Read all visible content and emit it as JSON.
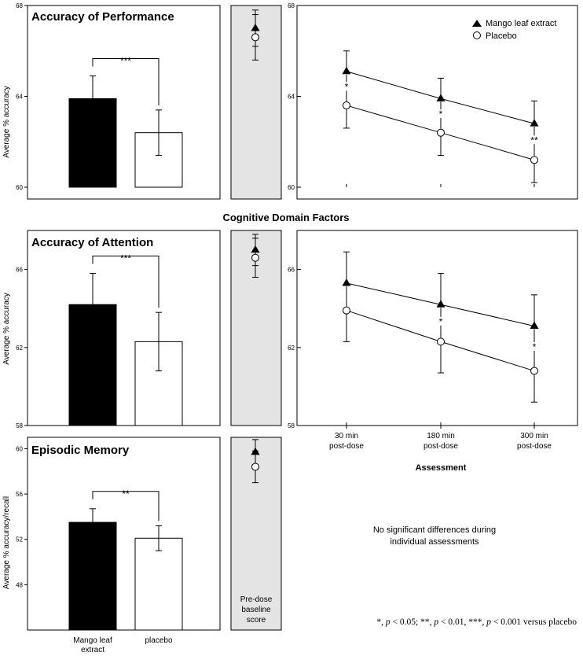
{
  "colors": {
    "baseline_bg": "#e4e4e4",
    "mango": "#000000",
    "placebo": "#ffffff",
    "axis": "#000000"
  },
  "domain_title": "Cognitive Domain Factors",
  "baseline_label": [
    "Pre-dose",
    "baseline",
    "score"
  ],
  "footnote": {
    "p1": "*, ",
    "p1_italic": "p",
    "p1_rest": " < 0.05; **, ",
    "p2_italic": "p",
    "p2_rest": " < 0.01, ***, ",
    "p3_italic": "p",
    "p3_rest": " < 0.001 versus placebo"
  },
  "note_no_sig": [
    "No significant differences during",
    "individual assessments"
  ],
  "legend": {
    "mango": "Mango leaf extract",
    "placebo": "Placebo"
  },
  "chart_data": [
    {
      "type": "bar",
      "title": "Accuracy of Performance",
      "ylabel": "Average % accuracy",
      "ylim": [
        60,
        68
      ],
      "yticks": [
        60,
        64,
        68
      ],
      "categories": [
        "Mango leaf extract",
        "placebo"
      ],
      "values": [
        63.9,
        62.4
      ],
      "errors": [
        1.0,
        1.0
      ],
      "significance": "***",
      "baseline": {
        "mango": 67.0,
        "mango_err": 0.8,
        "placebo": 66.6,
        "placebo_err": 1.0
      }
    },
    {
      "type": "line",
      "ylim": [
        60,
        68
      ],
      "yticks": [
        60,
        64,
        68
      ],
      "categories": [
        "30 min post-dose",
        "180 min post-dose",
        "300 min post-dose"
      ],
      "series": [
        {
          "name": "Mango leaf extract",
          "values": [
            65.1,
            63.9,
            62.8
          ],
          "errors": [
            0.9,
            0.9,
            1.0
          ]
        },
        {
          "name": "Placebo",
          "values": [
            63.6,
            62.4,
            61.2
          ],
          "errors": [
            1.0,
            1.0,
            1.0
          ]
        }
      ],
      "annotations": [
        "*",
        "*",
        "**"
      ]
    },
    {
      "type": "bar",
      "title": "Accuracy of Attention",
      "ylabel": "Average % accuracy",
      "ylim": [
        58,
        68
      ],
      "yticks": [
        58,
        62,
        66
      ],
      "categories": [
        "Mango leaf extract",
        "placebo"
      ],
      "values": [
        64.2,
        62.3
      ],
      "errors": [
        1.6,
        1.5
      ],
      "significance": "***",
      "baseline": {
        "mango": 67.0,
        "mango_err": 0.8,
        "placebo": 66.6,
        "placebo_err": 1.0
      }
    },
    {
      "type": "line",
      "ylim": [
        58,
        68
      ],
      "yticks": [
        58,
        62,
        66
      ],
      "xlabel": "Assessment",
      "categories": [
        "30 min post-dose",
        "180 min post-dose",
        "300 min post-dose"
      ],
      "series": [
        {
          "name": "Mango leaf extract",
          "values": [
            65.3,
            64.2,
            63.1
          ],
          "errors": [
            1.6,
            1.6,
            1.6
          ]
        },
        {
          "name": "Placebo",
          "values": [
            63.9,
            62.3,
            60.8
          ],
          "errors": [
            1.6,
            1.6,
            1.6
          ]
        }
      ],
      "annotations": [
        "",
        "*",
        "*"
      ]
    },
    {
      "type": "bar",
      "title": "Episodic Memory",
      "ylabel": "Average % accuracy/recall",
      "ylim": [
        44,
        61
      ],
      "yticks": [
        48,
        52,
        56,
        60
      ],
      "categories": [
        "Mango leaf extract",
        "placebo"
      ],
      "values": [
        53.5,
        52.1
      ],
      "errors": [
        1.2,
        1.1
      ],
      "significance": "**",
      "baseline": {
        "mango": 59.7,
        "mango_err": 1.1,
        "placebo": 58.4,
        "placebo_err": 1.4
      }
    }
  ]
}
